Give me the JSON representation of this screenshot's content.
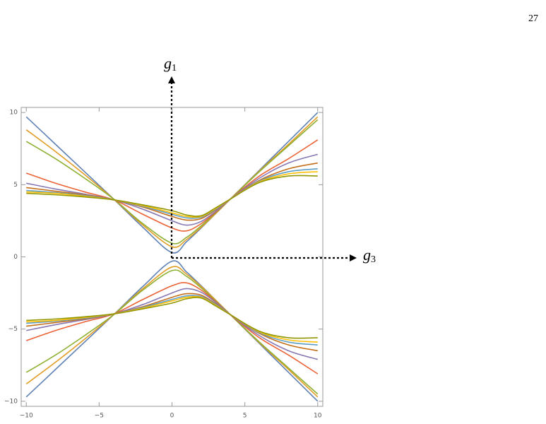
{
  "page_number": "27",
  "chart_data": {
    "type": "line",
    "x": [
      -10,
      -8,
      -6,
      -4,
      -2,
      0,
      1,
      2,
      3,
      4,
      6,
      8,
      10
    ],
    "series": [
      {
        "color": "#5E81B5",
        "values": [
          9.7,
          7.8,
          5.9,
          4,
          2.05,
          0.3,
          1.05,
          2.0,
          3.0,
          4,
          6,
          8,
          10
        ]
      },
      {
        "color": "#E19C24",
        "values": [
          8.8,
          7.3,
          5.7,
          4,
          2.2,
          0.7,
          1.2,
          2.05,
          3.0,
          4,
          5.95,
          7.8,
          9.7
        ]
      },
      {
        "color": "#8FB032",
        "values": [
          8.0,
          6.8,
          5.45,
          4,
          2.3,
          0.95,
          1.35,
          2.15,
          3.05,
          4,
          5.9,
          7.7,
          9.5
        ]
      },
      {
        "color": "#EB6235",
        "values": [
          5.8,
          5.1,
          4.5,
          3.95,
          2.95,
          2.0,
          1.8,
          2.3,
          3.1,
          4,
          5.6,
          6.8,
          8.1
        ]
      },
      {
        "color": "#8778B3",
        "values": [
          5.1,
          4.7,
          4.35,
          3.95,
          3.3,
          2.5,
          2.2,
          2.45,
          3.15,
          4,
          5.45,
          6.5,
          7.1
        ]
      },
      {
        "color": "#C56E1A",
        "values": [
          4.8,
          4.55,
          4.3,
          3.95,
          3.45,
          2.8,
          2.55,
          2.65,
          3.25,
          4,
          5.3,
          6.1,
          6.5
        ]
      },
      {
        "color": "#5D9EC7",
        "values": [
          4.6,
          4.45,
          4.25,
          3.95,
          3.5,
          2.95,
          2.7,
          2.75,
          3.3,
          4,
          5.25,
          5.9,
          6.1
        ]
      },
      {
        "color": "#FFBF00",
        "values": [
          4.5,
          4.4,
          4.2,
          3.95,
          3.55,
          3.05,
          2.8,
          2.8,
          3.35,
          4,
          5.2,
          5.75,
          5.9
        ]
      },
      {
        "color": "#929600",
        "values": [
          4.4,
          4.3,
          4.15,
          3.95,
          3.6,
          3.2,
          2.9,
          2.85,
          3.4,
          4,
          5.15,
          5.6,
          5.6
        ]
      },
      {
        "color": "#5E81B5",
        "values": [
          -9.7,
          -7.8,
          -5.9,
          -4,
          -2.05,
          -0.3,
          -1.05,
          -2.0,
          -3.0,
          -4,
          -6,
          -8,
          -10
        ]
      },
      {
        "color": "#E19C24",
        "values": [
          -8.8,
          -7.3,
          -5.7,
          -4,
          -2.2,
          -0.7,
          -1.2,
          -2.05,
          -3.0,
          -4,
          -5.95,
          -7.8,
          -9.7
        ]
      },
      {
        "color": "#8FB032",
        "values": [
          -8.0,
          -6.8,
          -5.45,
          -4,
          -2.3,
          -0.95,
          -1.35,
          -2.15,
          -3.05,
          -4,
          -5.9,
          -7.7,
          -9.5
        ]
      },
      {
        "color": "#EB6235",
        "values": [
          -5.8,
          -5.1,
          -4.5,
          -3.95,
          -2.95,
          -2.0,
          -1.8,
          -2.3,
          -3.1,
          -4,
          -5.6,
          -6.8,
          -8.1
        ]
      },
      {
        "color": "#8778B3",
        "values": [
          -5.1,
          -4.7,
          -4.35,
          -3.95,
          -3.3,
          -2.5,
          -2.2,
          -2.45,
          -3.15,
          -4,
          -5.45,
          -6.5,
          -7.1
        ]
      },
      {
        "color": "#C56E1A",
        "values": [
          -4.8,
          -4.55,
          -4.3,
          -3.95,
          -3.45,
          -2.8,
          -2.55,
          -2.65,
          -3.25,
          -4,
          -5.3,
          -6.1,
          -6.5
        ]
      },
      {
        "color": "#5D9EC7",
        "values": [
          -4.6,
          -4.45,
          -4.25,
          -3.95,
          -3.5,
          -2.95,
          -2.7,
          -2.75,
          -3.3,
          -4,
          -5.25,
          -5.9,
          -6.1
        ]
      },
      {
        "color": "#FFBF00",
        "values": [
          -4.5,
          -4.4,
          -4.2,
          -3.95,
          -3.55,
          -3.05,
          -2.8,
          -2.8,
          -3.35,
          -4,
          -5.2,
          -5.75,
          -5.9
        ]
      },
      {
        "color": "#929600",
        "values": [
          -4.4,
          -4.3,
          -4.15,
          -3.95,
          -3.6,
          -3.2,
          -2.9,
          -2.85,
          -3.4,
          -4,
          -5.15,
          -5.6,
          -5.6
        ]
      }
    ],
    "xlim": [
      -10.35,
      10.35
    ],
    "ylim": [
      -10.35,
      10.35
    ],
    "xticks": [
      {
        "value": -10,
        "label": "−10"
      },
      {
        "value": -5,
        "label": "−5"
      },
      0,
      5,
      10
    ],
    "yticks": [
      {
        "value": -10,
        "label": "−10"
      },
      {
        "value": -5,
        "label": "−5"
      },
      0,
      5,
      10
    ],
    "annotations": [
      {
        "text": "g",
        "subscript": "1"
      },
      {
        "text": "g",
        "subscript": "3"
      }
    ]
  }
}
